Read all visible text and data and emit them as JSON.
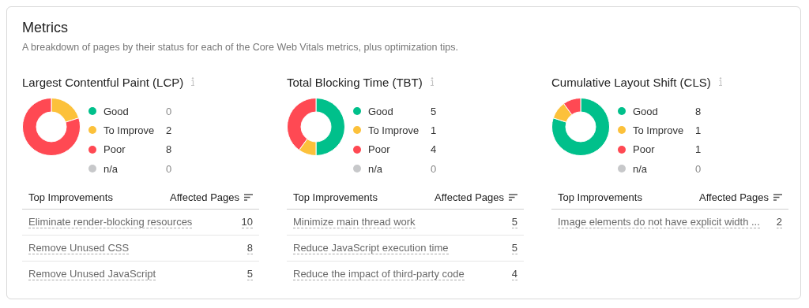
{
  "chart_data": [
    {
      "type": "other",
      "title": "Metrics",
      "subtitle": "A breakdown of pages by their status for each of the Core Web Vitals metrics, plus optimization tips."
    },
    {
      "type": "donut",
      "title": "Largest Contentful Paint (LCP)",
      "categories": [
        "Good",
        "To Improve",
        "Poor",
        "n/a"
      ],
      "values": [
        0,
        2,
        8,
        0
      ],
      "value_labels": [
        "0",
        "2",
        "8",
        "0"
      ],
      "colors": [
        "#00c08b",
        "#fcc13b",
        "#ff4953",
        "#c7c8ca"
      ],
      "legend": "right"
    },
    {
      "type": "donut",
      "title": "Total Blocking Time (TBT)",
      "categories": [
        "Good",
        "To Improve",
        "Poor",
        "n/a"
      ],
      "values": [
        5,
        1,
        4,
        0
      ],
      "value_labels": [
        "5",
        "1",
        "4",
        "0"
      ],
      "colors": [
        "#00c08b",
        "#fcc13b",
        "#ff4953",
        "#c7c8ca"
      ],
      "legend": "right"
    },
    {
      "type": "donut",
      "title": "Cumulative Layout Shift (CLS)",
      "categories": [
        "Good",
        "To Improve",
        "Poor",
        "n/a"
      ],
      "values": [
        8,
        1,
        1,
        0
      ],
      "value_labels": [
        "8",
        "1",
        "1",
        "0"
      ],
      "colors": [
        "#00c08b",
        "#fcc13b",
        "#ff4953",
        "#c7c8ca"
      ],
      "legend": "right"
    },
    {
      "type": "other",
      "xlabel": "Top Improvements",
      "ylabel": "Affected Pages",
      "categories": [
        "Eliminate render-blocking resources",
        "Remove Unused CSS",
        "Remove Unused JavaScript"
      ],
      "values": [
        10,
        8,
        5
      ],
      "data_labels": true
    },
    {
      "type": "other",
      "xlabel": "Top Improvements",
      "ylabel": "Affected Pages",
      "categories": [
        "Minimize main thread work",
        "Reduce JavaScript execution time",
        "Reduce the impact of third-party code"
      ],
      "values": [
        5,
        5,
        4
      ],
      "data_labels": true
    },
    {
      "type": "other",
      "xlabel": "Top Improvements",
      "ylabel": "Affected Pages",
      "categories": [
        "Image elements do not have explicit width ..."
      ],
      "values": [
        2
      ],
      "data_labels": true
    }
  ]
}
